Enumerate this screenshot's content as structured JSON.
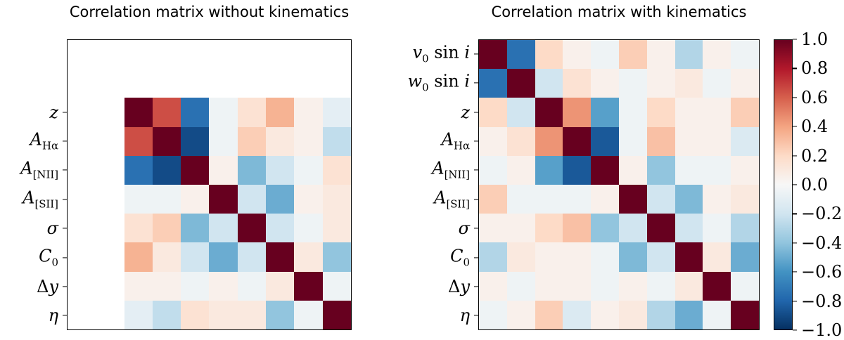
{
  "chart_data": [
    {
      "type": "heatmap",
      "title": "Correlation matrix without kinematics",
      "grid_size": 10,
      "offset": 2,
      "row_labels": [
        "z",
        "A_{Hα}",
        "A_{[NII]}",
        "A_{[SII]}",
        "σ",
        "C_0",
        "Δy",
        "η"
      ],
      "vmin": -1.0,
      "vmax": 1.0,
      "matrix": [
        [
          1.0,
          0.65,
          -0.75,
          -0.05,
          0.15,
          0.35,
          0.05,
          -0.1
        ],
        [
          0.65,
          1.0,
          -0.9,
          -0.05,
          0.25,
          0.1,
          0.05,
          -0.25
        ],
        [
          -0.75,
          -0.9,
          1.0,
          0.05,
          -0.45,
          -0.2,
          -0.05,
          0.15
        ],
        [
          -0.05,
          -0.05,
          0.05,
          1.0,
          -0.2,
          -0.5,
          0.05,
          0.1
        ],
        [
          0.15,
          0.25,
          -0.45,
          -0.2,
          1.0,
          -0.2,
          -0.05,
          0.1
        ],
        [
          0.35,
          0.1,
          -0.2,
          -0.5,
          -0.2,
          1.0,
          0.1,
          -0.4
        ],
        [
          0.05,
          0.05,
          -0.05,
          0.05,
          -0.05,
          0.1,
          1.0,
          -0.05
        ],
        [
          -0.1,
          -0.25,
          0.15,
          0.1,
          0.1,
          -0.4,
          -0.05,
          1.0
        ]
      ]
    },
    {
      "type": "heatmap",
      "title": "Correlation matrix with kinematics",
      "grid_size": 10,
      "offset": 0,
      "row_labels": [
        "v_0 sin i",
        "w_0 sin i",
        "z",
        "A_{Hα}",
        "A_{[NII]}",
        "A_{[SII]}",
        "σ",
        "C_0",
        "Δy",
        "η"
      ],
      "vmin": -1.0,
      "vmax": 1.0,
      "matrix": [
        [
          1.0,
          -0.75,
          0.2,
          0.05,
          -0.05,
          0.25,
          0.05,
          -0.3,
          0.05,
          -0.05
        ],
        [
          -0.75,
          1.0,
          -0.2,
          0.15,
          0.05,
          -0.05,
          0.05,
          0.1,
          -0.05,
          0.05
        ],
        [
          0.2,
          -0.2,
          1.0,
          0.45,
          -0.55,
          -0.05,
          0.2,
          0.05,
          0.05,
          0.25
        ],
        [
          0.05,
          0.15,
          0.45,
          1.0,
          -0.85,
          -0.05,
          0.3,
          0.05,
          0.05,
          -0.15
        ],
        [
          -0.05,
          0.05,
          -0.55,
          -0.85,
          1.0,
          0.05,
          -0.4,
          -0.05,
          -0.05,
          0.05
        ],
        [
          0.25,
          -0.05,
          -0.05,
          -0.05,
          0.05,
          1.0,
          -0.2,
          -0.45,
          0.05,
          0.1
        ],
        [
          0.05,
          0.05,
          0.2,
          0.3,
          -0.4,
          -0.2,
          1.0,
          -0.2,
          -0.05,
          -0.3
        ],
        [
          -0.3,
          0.1,
          0.05,
          0.05,
          -0.05,
          -0.45,
          -0.2,
          1.0,
          0.1,
          -0.5
        ],
        [
          0.05,
          -0.05,
          0.05,
          0.05,
          -0.05,
          0.05,
          -0.05,
          0.1,
          1.0,
          -0.05
        ],
        [
          -0.05,
          0.05,
          0.25,
          -0.15,
          0.05,
          0.1,
          -0.3,
          -0.5,
          -0.05,
          1.0
        ]
      ]
    }
  ],
  "colorbar": {
    "tick_labels": [
      "1.0",
      "0.8",
      "0.6",
      "0.4",
      "0.2",
      "0.0",
      "−0.2",
      "−0.4",
      "−0.6",
      "−0.8",
      "−1.0"
    ],
    "vmax": 1.0,
    "vmin": -1.0,
    "colormap": "RdBu",
    "colormap_anchors_rgb": [
      [
        103,
        0,
        31
      ],
      [
        178,
        24,
        43
      ],
      [
        214,
        96,
        77
      ],
      [
        244,
        165,
        130
      ],
      [
        253,
        219,
        199
      ],
      [
        247,
        247,
        247
      ],
      [
        209,
        229,
        240
      ],
      [
        146,
        197,
        222
      ],
      [
        67,
        147,
        195
      ],
      [
        33,
        102,
        172
      ],
      [
        5,
        48,
        97
      ]
    ]
  }
}
